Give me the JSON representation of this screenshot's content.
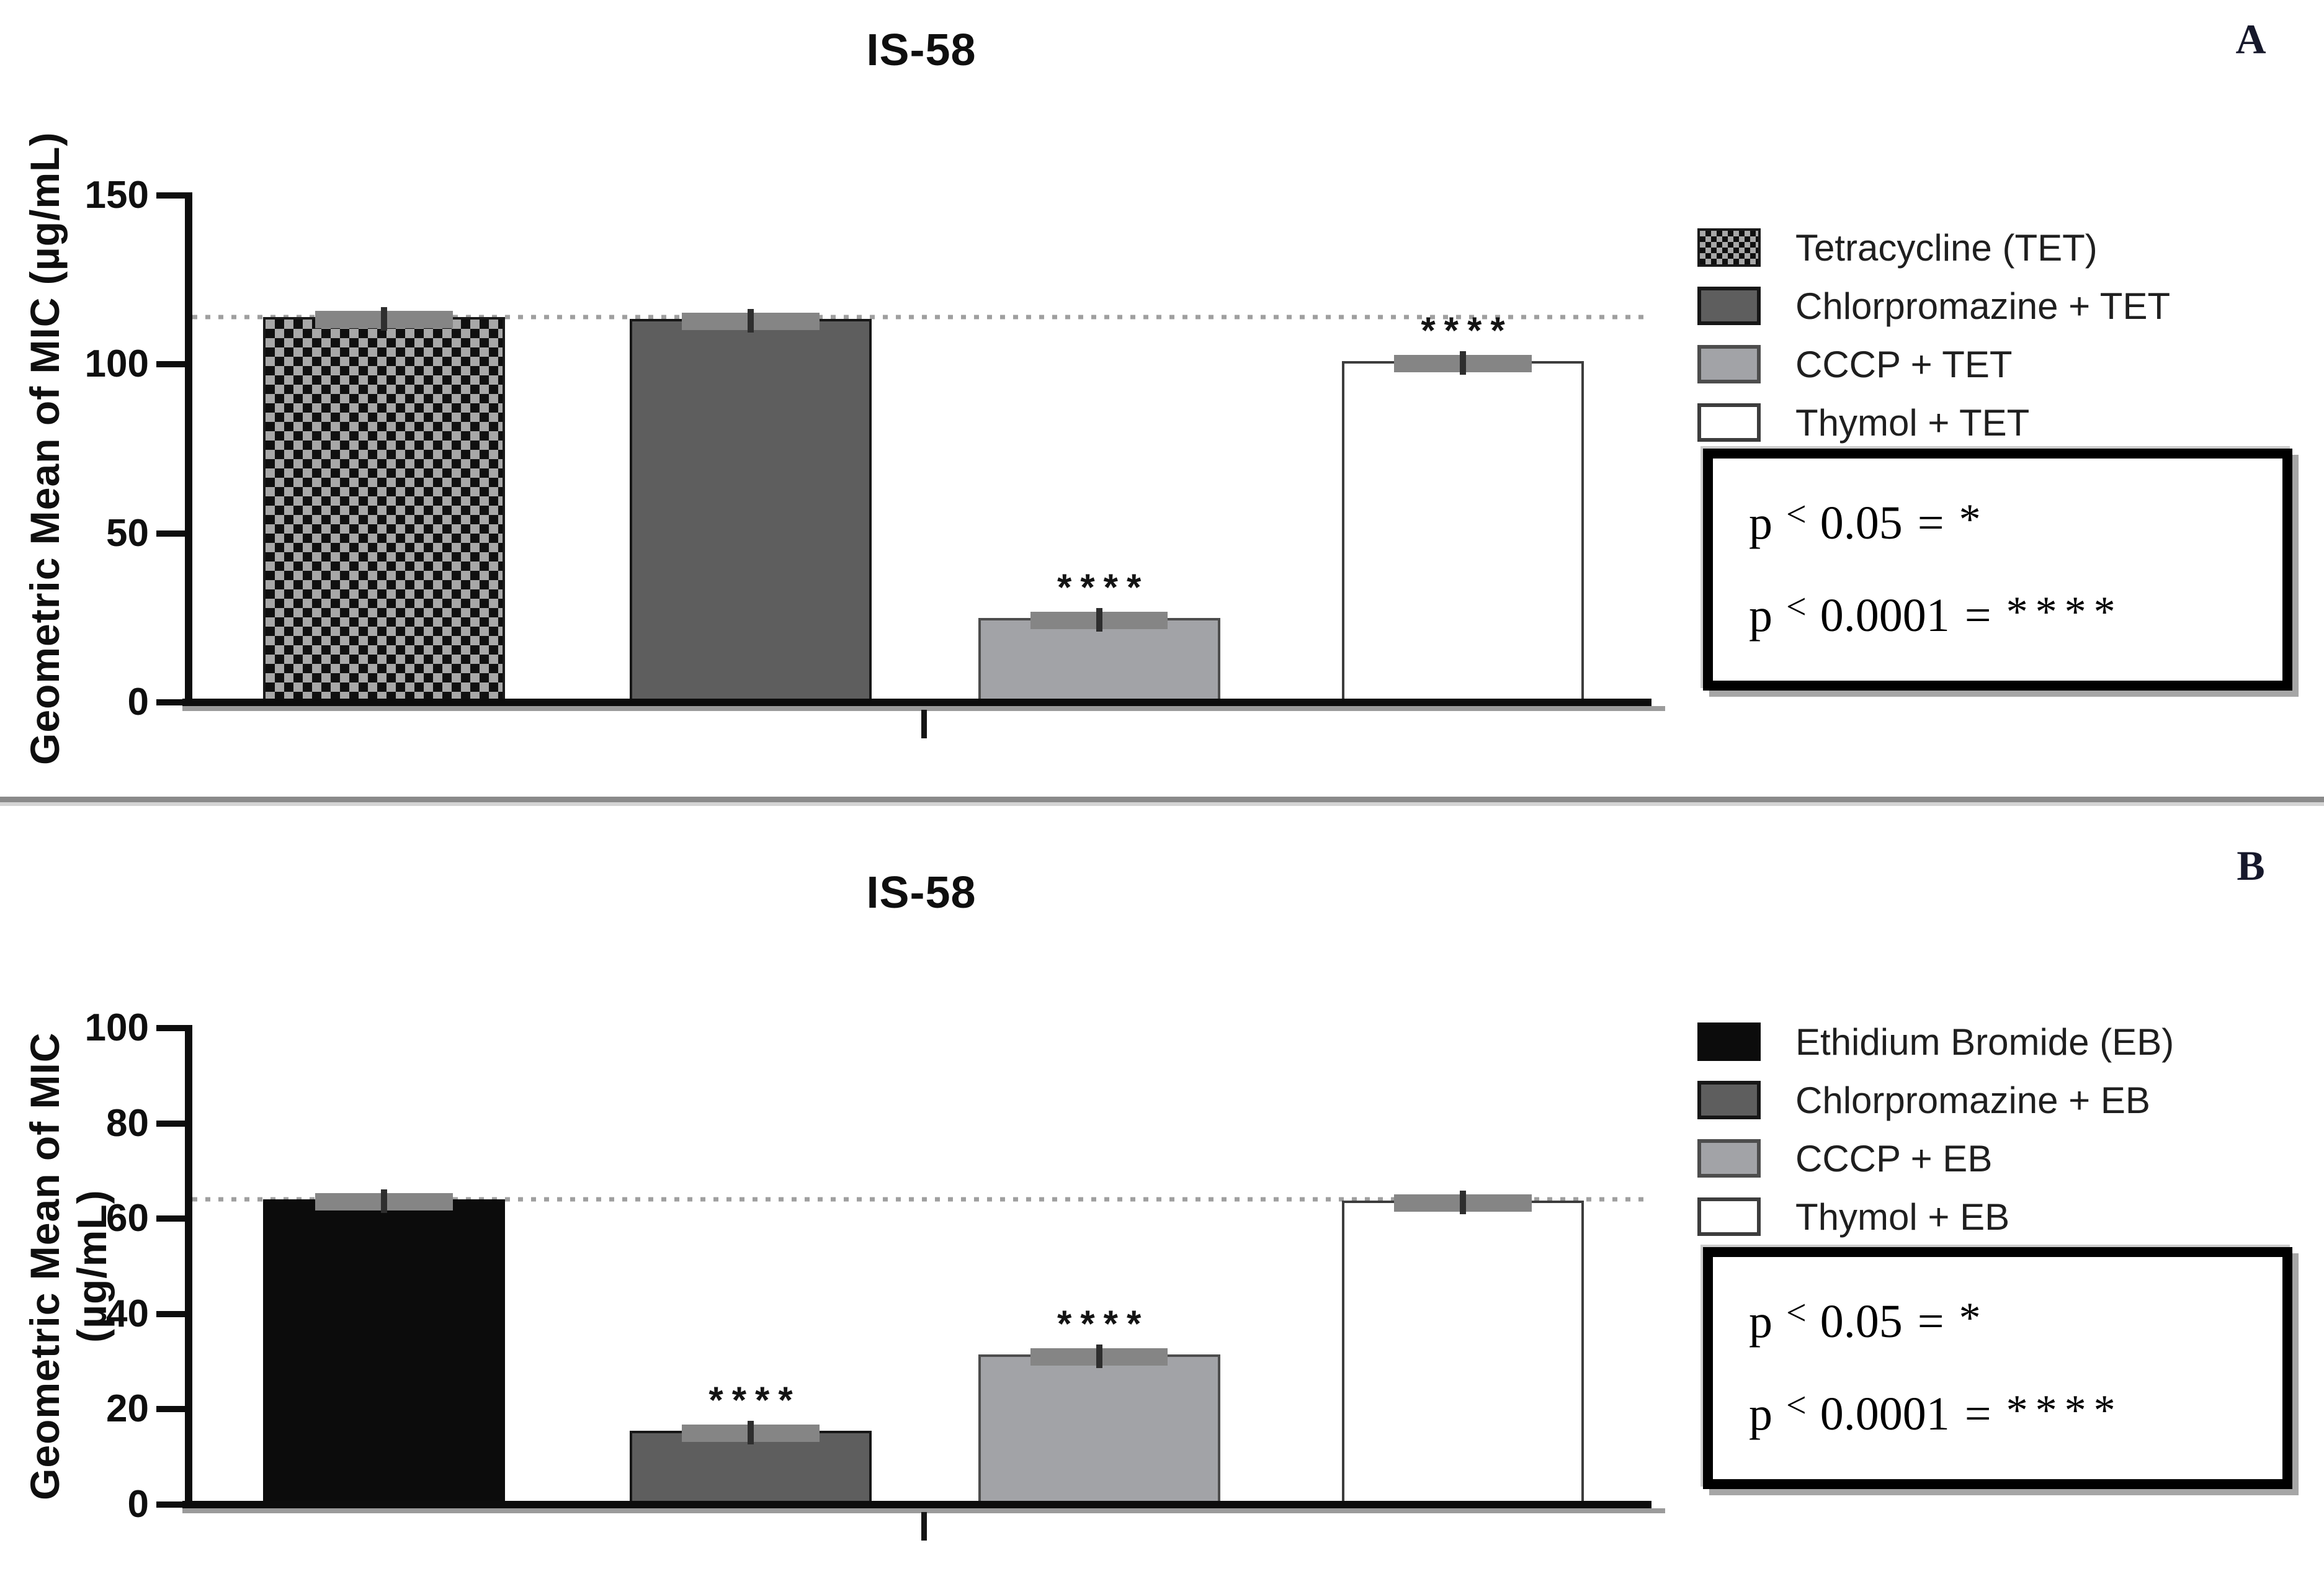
{
  "figure": {
    "colors": {
      "bar_black": "#0c0c0c",
      "bar_dark_gray": "#5e5e5e",
      "bar_light_gray": "#a2a3a7",
      "bar_white": "#ffffff",
      "crosshatch_background": "#a8a8a8",
      "crosshatch_pattern": "#101010",
      "error_cap": "#858585",
      "reference_dotted_line": "#9f9f9f",
      "axis": "#0d0d0d",
      "divider": "#8a8a8a",
      "panel_letter": "#16182b",
      "p_box_border": "#000000",
      "p_box_shadow": "#a6a6a6"
    },
    "panels": [
      {
        "label": "A",
        "title": "IS-58",
        "y_axis": {
          "label": "Geometric Mean of MIC (µg/mL)",
          "max": 150,
          "ticks": [
            0,
            50,
            100,
            150
          ]
        },
        "reference_line_value": 114,
        "bars": [
          {
            "name": "Tetracycline (TET)",
            "value": 114,
            "sig": ""
          },
          {
            "name": "Chlorpromazine + TET",
            "value": 113.5,
            "sig": ""
          },
          {
            "name": "CCCP + TET",
            "value": 25,
            "sig": "****"
          },
          {
            "name": "Thymol + TET",
            "value": 101,
            "sig": "****"
          }
        ],
        "legend": [
          {
            "label": "Tetracycline (TET)"
          },
          {
            "label": "Chlorpromazine + TET"
          },
          {
            "label": "CCCP + TET"
          },
          {
            "label": "Thymol + TET"
          }
        ],
        "p_box": {
          "line1": {
            "lhs": "p",
            "op": "<",
            "threshold": "0.05",
            "eq": "=",
            "stars": "*"
          },
          "line2": {
            "lhs": "p",
            "op": "<",
            "threshold": "0.0001",
            "eq": "=",
            "stars": "****"
          }
        }
      },
      {
        "label": "B",
        "title": "IS-58",
        "y_axis": {
          "label": "Geometric Mean of MIC (µg/mL)",
          "max": 100,
          "ticks": [
            0,
            20,
            40,
            60,
            80,
            100
          ]
        },
        "reference_line_value": 64,
        "bars": [
          {
            "name": "Ethidium Bromide (EB)",
            "value": 64,
            "sig": ""
          },
          {
            "name": "Chlorpromazine + EB",
            "value": 15.5,
            "sig": "****"
          },
          {
            "name": "CCCP + EB",
            "value": 31.5,
            "sig": "****"
          },
          {
            "name": "Thymol + EB",
            "value": 63.8,
            "sig": ""
          }
        ],
        "legend": [
          {
            "label": "Ethidium Bromide (EB)"
          },
          {
            "label": "Chlorpromazine + EB"
          },
          {
            "label": "CCCP + EB"
          },
          {
            "label": "Thymol + EB"
          }
        ],
        "p_box": {
          "line1": {
            "lhs": "p",
            "op": "<",
            "threshold": "0.05",
            "eq": "=",
            "stars": "*"
          },
          "line2": {
            "lhs": "p",
            "op": "<",
            "threshold": "0.0001",
            "eq": "=",
            "stars": "****"
          }
        }
      }
    ]
  },
  "chart_data": [
    {
      "type": "bar",
      "panel": "A",
      "title": "IS-58",
      "xlabel": "",
      "ylabel": "Geometric Mean of MIC (µg/mL)",
      "ylim": [
        0,
        150
      ],
      "yticks": [
        0,
        50,
        100,
        150
      ],
      "categories": [
        "Tetracycline (TET)",
        "Chlorpromazine + TET",
        "CCCP + TET",
        "Thymol + TET"
      ],
      "values": [
        114,
        113.5,
        25,
        101
      ],
      "error_bars": true,
      "significance": [
        "",
        "",
        "****",
        "****"
      ],
      "reference_line": 114,
      "bar_styles": [
        "crosshatch",
        "dark-gray",
        "light-gray",
        "white"
      ],
      "legend_position": "right",
      "grid": false,
      "annotations": [
        "p < 0.05 = *",
        "p < 0.0001 = ****"
      ]
    },
    {
      "type": "bar",
      "panel": "B",
      "title": "IS-58",
      "xlabel": "",
      "ylabel": "Geometric Mean of MIC (µg/mL)",
      "ylim": [
        0,
        100
      ],
      "yticks": [
        0,
        20,
        40,
        60,
        80,
        100
      ],
      "categories": [
        "Ethidium Bromide (EB)",
        "Chlorpromazine + EB",
        "CCCP + EB",
        "Thymol + EB"
      ],
      "values": [
        64,
        15.5,
        31.5,
        63.8
      ],
      "error_bars": true,
      "significance": [
        "",
        "****",
        "****",
        ""
      ],
      "reference_line": 64,
      "bar_styles": [
        "black",
        "dark-gray",
        "light-gray",
        "white"
      ],
      "legend_position": "right",
      "grid": false,
      "annotations": [
        "p < 0.05 = *",
        "p < 0.0001 = ****"
      ]
    }
  ]
}
